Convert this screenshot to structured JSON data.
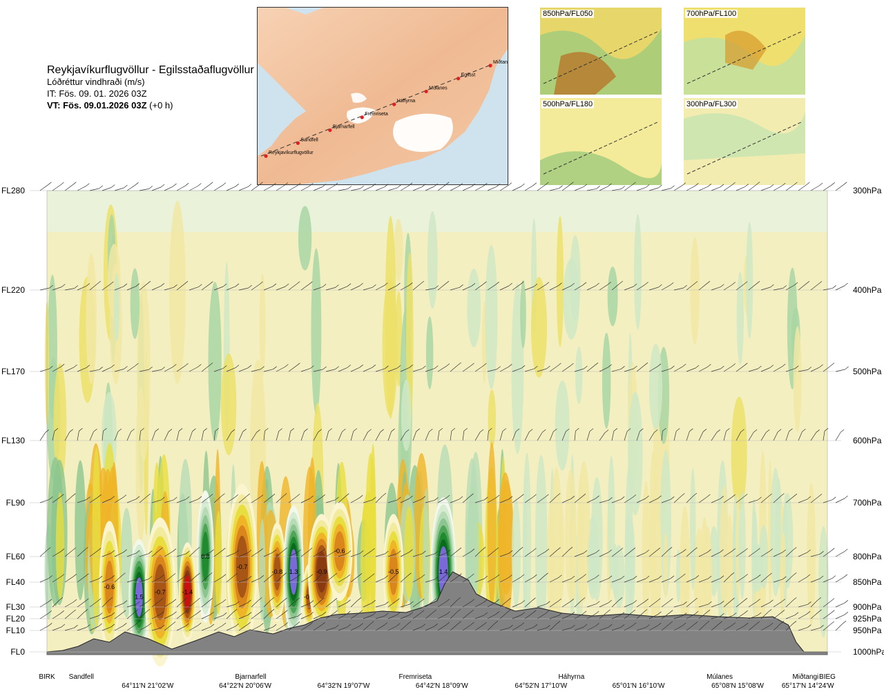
{
  "title": {
    "route": "Reykjavíkurflugvöllur - Egilsstaðaflugvöllur",
    "parameter": "Lóðréttur vindhraði (m/s)",
    "issue_time": "IT: Fös. 09. 01. 2026 03Z",
    "valid_bold": "VT: Fös. 09.01.2026 03Z",
    "valid_rest": "(+0 h)"
  },
  "map": {
    "points": [
      "Reykjavíkurflugvöllur",
      "Sandfell",
      "Bjarnarfell",
      "Fremriseta",
      "Háhyrna",
      "Múlanes",
      "Egilsst",
      "Miðtangi"
    ]
  },
  "mini_maps": [
    {
      "label": "850hPa/FL050"
    },
    {
      "label": "700hPa/FL100"
    },
    {
      "label": "500hPa/FL180"
    },
    {
      "label": "300hPa/FL300"
    }
  ],
  "chart_data": {
    "type": "heatmap",
    "title": "Lóðréttur vindhraði (m/s)",
    "flight_levels": [
      {
        "label": "FL280",
        "hpa": "300hPa",
        "pressure": 300
      },
      {
        "label": "FL220",
        "hpa": "400hPa",
        "pressure": 400
      },
      {
        "label": "FL170",
        "hpa": "500hPa",
        "pressure": 500
      },
      {
        "label": "FL130",
        "hpa": "600hPa",
        "pressure": 600
      },
      {
        "label": "FL90",
        "hpa": "700hPa",
        "pressure": 700
      },
      {
        "label": "FL60",
        "hpa": "800hPa",
        "pressure": 800
      },
      {
        "label": "FL40",
        "hpa": "850hPa",
        "pressure": 850
      },
      {
        "label": "FL30",
        "hpa": "900hPa",
        "pressure": 900
      },
      {
        "label": "FL20",
        "hpa": "925hPa",
        "pressure": 925
      },
      {
        "label": "FL10",
        "hpa": "950hPa",
        "pressure": 950
      },
      {
        "label": "FL0",
        "hpa": "1000hPa",
        "pressure": 1000
      }
    ],
    "x_stations": [
      {
        "name": "BIRK",
        "pos": 0.0
      },
      {
        "name": "Sandfell",
        "pos": 0.044
      },
      {
        "name": "Bjarnarfell",
        "pos": 0.261
      },
      {
        "name": "Fremriseta",
        "pos": 0.472
      },
      {
        "name": "Háhyrna",
        "pos": 0.672
      },
      {
        "name": "Múlanes",
        "pos": 0.862
      },
      {
        "name": "Miðtangi",
        "pos": 0.972
      },
      {
        "name": "BIEG",
        "pos": 1.0
      }
    ],
    "x_coords": [
      {
        "label": "64°11'N 21°02'W",
        "pos": 0.129
      },
      {
        "label": "64°22'N 20°06'W",
        "pos": 0.254
      },
      {
        "label": "64°32'N 19°07'W",
        "pos": 0.38
      },
      {
        "label": "64°42'N 18°09'W",
        "pos": 0.506
      },
      {
        "label": "64°52'N 17°10'W",
        "pos": 0.633
      },
      {
        "label": "65°01'N 16°10'W",
        "pos": 0.758
      },
      {
        "label": "65°08'N 15°08'W",
        "pos": 0.885
      },
      {
        "label": "65°17'N 14°24'W",
        "pos": 0.975
      }
    ],
    "color_scale": {
      "negative": [
        "#fbf5cf",
        "#f2ea9c",
        "#e9de3f",
        "#f0b428",
        "#d9871c",
        "#a85615",
        "#8a3a10",
        "#cc1010"
      ],
      "positive": [
        "#f2f8ec",
        "#d7ecd2",
        "#b7dcb5",
        "#8cc58f",
        "#4fa557",
        "#1f8a2f",
        "#0a6a1e",
        "#7a6ad8"
      ]
    },
    "cells": [
      {
        "x": 0.08,
        "p": 860,
        "w": 0.012,
        "h": 80,
        "v": -0.6
      },
      {
        "x": 0.118,
        "p": 880,
        "w": 0.012,
        "h": 70,
        "v": 1.5
      },
      {
        "x": 0.145,
        "p": 870,
        "w": 0.018,
        "h": 90,
        "v": -0.7
      },
      {
        "x": 0.18,
        "p": 870,
        "w": 0.01,
        "h": 60,
        "v": -1.4
      },
      {
        "x": 0.203,
        "p": 800,
        "w": 0.01,
        "h": 80,
        "v": 0.8
      },
      {
        "x": 0.25,
        "p": 820,
        "w": 0.018,
        "h": 100,
        "v": -0.7
      },
      {
        "x": 0.295,
        "p": 830,
        "w": 0.01,
        "h": 60,
        "v": -0.8
      },
      {
        "x": 0.316,
        "p": 830,
        "w": 0.012,
        "h": 80,
        "v": 1.3
      },
      {
        "x": 0.336,
        "p": 880,
        "w": 0.008,
        "h": 40,
        "v": -0.8
      },
      {
        "x": 0.352,
        "p": 830,
        "w": 0.016,
        "h": 70,
        "v": -0.9
      },
      {
        "x": 0.375,
        "p": 790,
        "w": 0.015,
        "h": 60,
        "v": -0.6
      },
      {
        "x": 0.444,
        "p": 830,
        "w": 0.012,
        "h": 70,
        "v": -0.5
      },
      {
        "x": 0.508,
        "p": 830,
        "w": 0.015,
        "h": 90,
        "v": 1.4
      }
    ],
    "xlabel": "",
    "ylabel": "",
    "grid": true
  }
}
